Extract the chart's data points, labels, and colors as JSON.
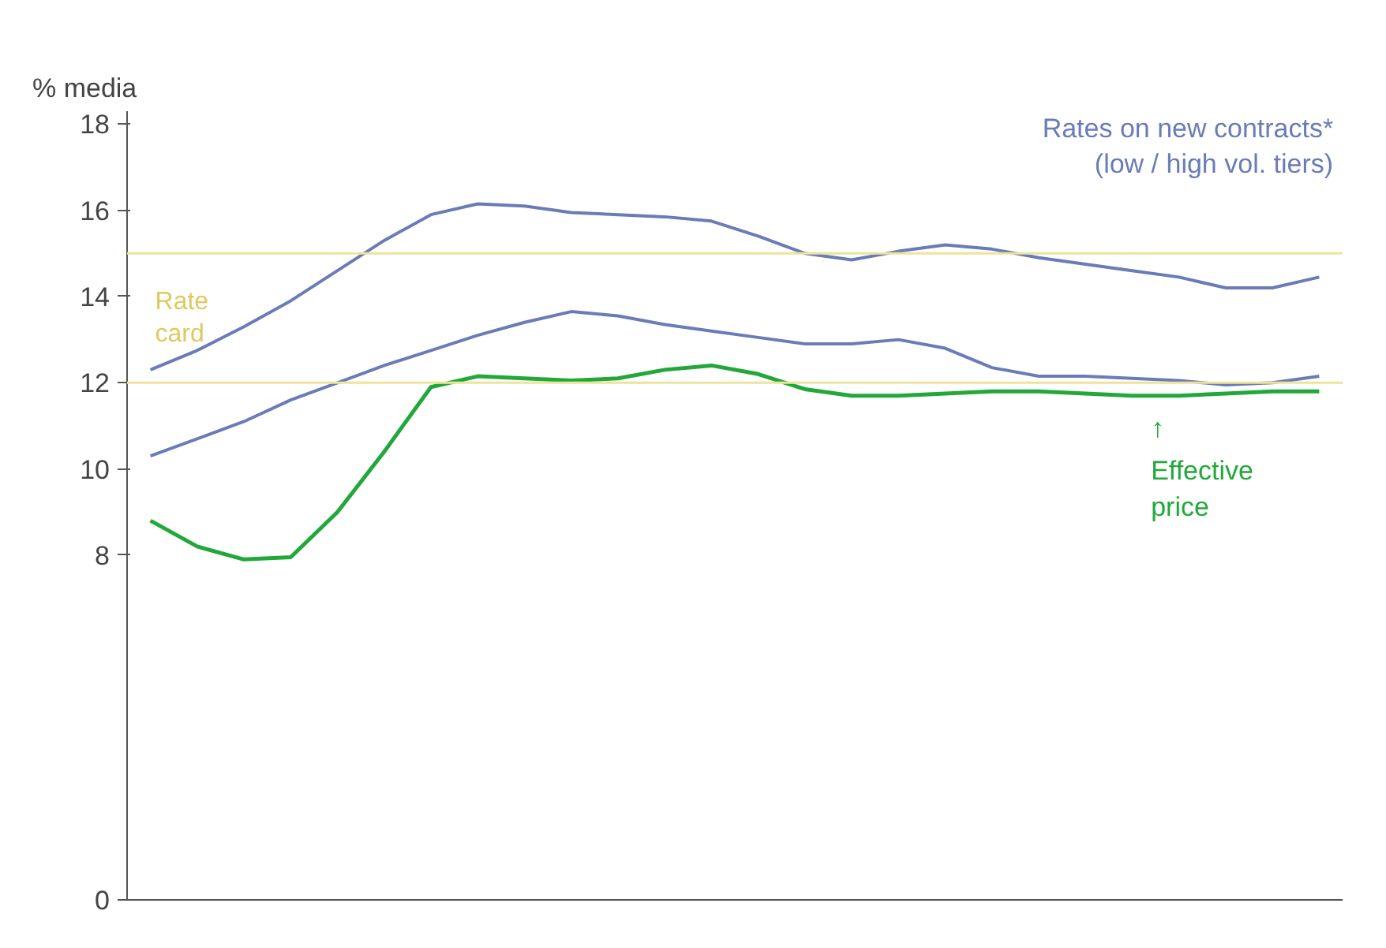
{
  "chart_data": {
    "type": "line",
    "ylabel": "% media",
    "categories": [
      null,
      null,
      null,
      null,
      null,
      null,
      null,
      null,
      null,
      null,
      null,
      null,
      null,
      null,
      null,
      null,
      null,
      null,
      null,
      null,
      null,
      null,
      null,
      null,
      null,
      null
    ],
    "series": [
      {
        "color": "#6a7cb8",
        "values": [
          12.3,
          12.75,
          13.3,
          13.9,
          14.6,
          15.3,
          15.9,
          16.15,
          16.1,
          15.95,
          15.9,
          15.85,
          15.75,
          15.4,
          15.0,
          14.85,
          15.05,
          15.2,
          15.1,
          14.9,
          14.75,
          14.6,
          14.45,
          14.2,
          14.2,
          14.45
        ]
      },
      {
        "color": "#6a7cb8",
        "values": [
          10.3,
          10.7,
          11.1,
          11.6,
          12.0,
          12.4,
          12.75,
          13.1,
          13.4,
          13.65,
          13.55,
          13.35,
          13.2,
          13.05,
          12.9,
          12.9,
          13.0,
          12.8,
          12.35,
          12.15,
          12.15,
          12.1,
          12.05,
          11.95,
          12.0,
          12.15
        ]
      },
      {
        "color": "#22a83a",
        "values": [
          8.8,
          8.2,
          7.9,
          7.95,
          9.0,
          10.4,
          11.9,
          12.15,
          12.1,
          12.05,
          12.1,
          12.3,
          12.4,
          12.2,
          11.85,
          11.7,
          11.7,
          11.75,
          11.8,
          11.8,
          11.75,
          11.7,
          11.7,
          11.75,
          11.8,
          11.8
        ]
      }
    ],
    "ylim": [
      0,
      18.3
    ],
    "yticks": [
      0,
      8,
      10,
      12,
      14,
      16,
      18
    ],
    "ref_lines": [
      {
        "axis": "y",
        "value": 15,
        "color": "#eee39a"
      },
      {
        "axis": "y",
        "value": 12,
        "color": "#eee39a"
      }
    ],
    "annotations": [
      "Rates on new contracts* (low / high vol. tiers)",
      "Rate card",
      "Effective price",
      "↑"
    ],
    "tick_labels": "y",
    "grid": false,
    "marker": "none",
    "line_style": "solid"
  }
}
